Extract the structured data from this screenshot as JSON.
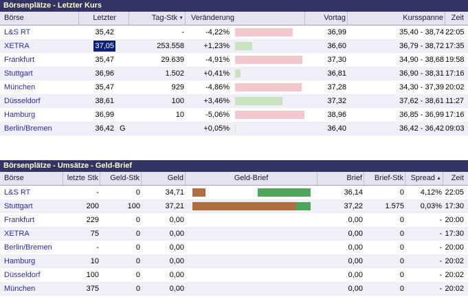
{
  "colors": {
    "title_bg": "#333366",
    "title_text": "#FFFFCC",
    "header_bg": "#E4E4F0",
    "row_alt": "#EFEFF7",
    "link": "#2B2BA0",
    "neg_bar": "#F2C7CE",
    "pos_bar": "#C9E3BE",
    "geld_bar": "#AF6E3F",
    "brief_bar": "#4FA55B",
    "selected_bg": "#0F1F78"
  },
  "table1": {
    "title": "Börsenplätze - Letzter Kurs",
    "headers": {
      "boerse": "Börse",
      "letzter": "Letzter",
      "tag_stk": "Tag-Stk",
      "tag_stk_sort": "▼",
      "veraenderung": "Veränderung",
      "vortag": "Vortag",
      "kursspanne": "Kursspanne",
      "zeit": "Zeit"
    },
    "rows": [
      {
        "boerse": "L&S RT",
        "letzter": "35,42",
        "flag": "",
        "tag_stk": "-",
        "veraenderung": "-4,22%",
        "change": -4.22,
        "vortag": "36,99",
        "kursspanne": "35,40 - 38,74",
        "zeit": "22:05",
        "selected": false
      },
      {
        "boerse": "XETRA",
        "letzter": "37,05",
        "flag": "",
        "tag_stk": "253.558",
        "veraenderung": "+1,23%",
        "change": 1.23,
        "vortag": "36,60",
        "kursspanne": "36,79 - 38,72",
        "zeit": "17:35",
        "selected": true
      },
      {
        "boerse": "Frankfurt",
        "letzter": "35,47",
        "flag": "",
        "tag_stk": "29.639",
        "veraenderung": "-4,91%",
        "change": -4.91,
        "vortag": "37,30",
        "kursspanne": "34,90 - 38,68",
        "zeit": "19:58",
        "selected": false
      },
      {
        "boerse": "Stuttgart",
        "letzter": "36,96",
        "flag": "",
        "tag_stk": "1.502",
        "veraenderung": "+0,41%",
        "change": 0.41,
        "vortag": "36,81",
        "kursspanne": "36,90 - 38,31",
        "zeit": "17:16",
        "selected": false
      },
      {
        "boerse": "München",
        "letzter": "35,47",
        "flag": "",
        "tag_stk": "929",
        "veraenderung": "-4,86%",
        "change": -4.86,
        "vortag": "37,28",
        "kursspanne": "34,30 - 37,39",
        "zeit": "20:02",
        "selected": false
      },
      {
        "boerse": "Düsseldorf",
        "letzter": "38,61",
        "flag": "",
        "tag_stk": "100",
        "veraenderung": "+3,46%",
        "change": 3.46,
        "vortag": "37,32",
        "kursspanne": "37,62 - 38,61",
        "zeit": "11:27",
        "selected": false
      },
      {
        "boerse": "Hamburg",
        "letzter": "36,99",
        "flag": "",
        "tag_stk": "10",
        "veraenderung": "-5,06%",
        "change": -5.06,
        "vortag": "38,96",
        "kursspanne": "36,85 - 36,99",
        "zeit": "17:16",
        "selected": false
      },
      {
        "boerse": "Berlin/Bremen",
        "letzter": "36,42",
        "flag": "G",
        "tag_stk": "",
        "veraenderung": "+0,05%",
        "change": 0.05,
        "vortag": "36,40",
        "kursspanne": "36,42 - 36,42",
        "zeit": "09:03",
        "selected": false
      }
    ]
  },
  "table2": {
    "title": "Börsenplätze - Umsätze - Geld-Brief",
    "headers": {
      "boerse": "Börse",
      "letzte_stk": "letzte Stk",
      "geld_stk": "Geld-Stk",
      "geld": "Geld",
      "geld_brief": "Geld-Brief",
      "brief": "Brief",
      "brief_stk": "Brief-Stk",
      "spread": "Spread",
      "spread_sort": "▲",
      "zeit": "Zeit"
    },
    "rows": [
      {
        "boerse": "L&S RT",
        "letzte_stk": "-",
        "geld_stk": "0",
        "geld": "34,71",
        "geld_bar_pct": 11,
        "brief_bar_pct": 45,
        "brief": "36,14",
        "brief_stk": "0",
        "spread": "4,12%",
        "zeit": "22:05"
      },
      {
        "boerse": "Stuttgart",
        "letzte_stk": "200",
        "geld_stk": "100",
        "geld": "37,21",
        "geld_bar_pct": 88,
        "brief_bar_pct": 12,
        "brief": "37,22",
        "brief_stk": "1.575",
        "spread": "0,03%",
        "zeit": "17:30"
      },
      {
        "boerse": "Frankfurt",
        "letzte_stk": "229",
        "geld_stk": "0",
        "geld": "0,00",
        "geld_bar_pct": 0,
        "brief_bar_pct": 0,
        "brief": "0,00",
        "brief_stk": "0",
        "spread": "-",
        "zeit": "20:00"
      },
      {
        "boerse": "XETRA",
        "letzte_stk": "75",
        "geld_stk": "0",
        "geld": "0,00",
        "geld_bar_pct": 0,
        "brief_bar_pct": 0,
        "brief": "0,00",
        "brief_stk": "0",
        "spread": "-",
        "zeit": "17:30"
      },
      {
        "boerse": "Berlin/Bremen",
        "letzte_stk": "-",
        "geld_stk": "0",
        "geld": "0,00",
        "geld_bar_pct": 0,
        "brief_bar_pct": 0,
        "brief": "0,00",
        "brief_stk": "0",
        "spread": "-",
        "zeit": "20:00"
      },
      {
        "boerse": "Hamburg",
        "letzte_stk": "10",
        "geld_stk": "0",
        "geld": "0,00",
        "geld_bar_pct": 0,
        "brief_bar_pct": 0,
        "brief": "0,00",
        "brief_stk": "0",
        "spread": "-",
        "zeit": "20:02"
      },
      {
        "boerse": "Düsseldorf",
        "letzte_stk": "100",
        "geld_stk": "0",
        "geld": "0,00",
        "geld_bar_pct": 0,
        "brief_bar_pct": 0,
        "brief": "0,00",
        "brief_stk": "0",
        "spread": "-",
        "zeit": "20:02"
      },
      {
        "boerse": "München",
        "letzte_stk": "375",
        "geld_stk": "0",
        "geld": "0,00",
        "geld_bar_pct": 0,
        "brief_bar_pct": 0,
        "brief": "0,00",
        "brief_stk": "0",
        "spread": "-",
        "zeit": "20:02"
      }
    ]
  }
}
